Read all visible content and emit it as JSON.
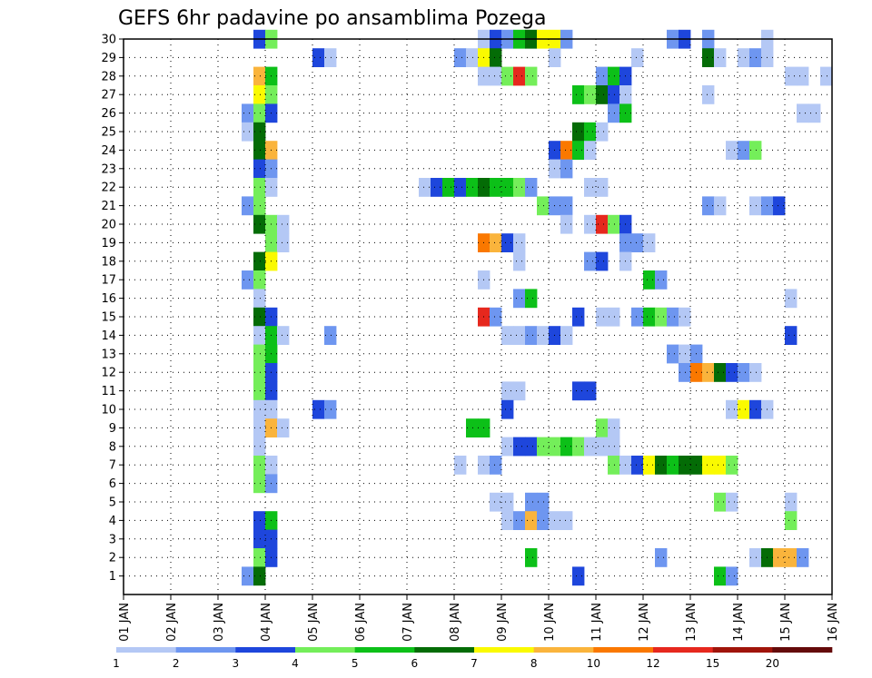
{
  "chart_data": {
    "type": "heatmap",
    "title": "GEFS 6hr padavine po ansamblima Pozega",
    "xlabel": "",
    "ylabel": "",
    "x_tick_labels": [
      "01 JAN",
      "02 JAN",
      "03 JAN",
      "04 JAN",
      "05 JAN",
      "06 JAN",
      "07 JAN",
      "08 JAN",
      "09 JAN",
      "10 JAN",
      "11 JAN",
      "12 JAN",
      "13 JAN",
      "14 JAN",
      "15 JAN",
      "16 JAN"
    ],
    "y_tick_labels": [
      "1",
      "2",
      "3",
      "4",
      "5",
      "6",
      "7",
      "8",
      "9",
      "10",
      "11",
      "12",
      "13",
      "14",
      "15",
      "16",
      "17",
      "18",
      "19",
      "20",
      "21",
      "22",
      "23",
      "24",
      "25",
      "26",
      "27",
      "28",
      "29",
      "30"
    ],
    "x_range_days": [
      1,
      16
    ],
    "y_range_members": [
      0,
      30
    ],
    "grid": true,
    "legend_position": "bottom",
    "color_scale": {
      "breaks": [
        "1",
        "2",
        "3",
        "4",
        "5",
        "6",
        "7",
        "8",
        "10",
        "12",
        "15",
        "20"
      ],
      "colors": [
        "#b4c8f5",
        "#6e96f0",
        "#1e46dc",
        "#74ee5a",
        "#0cc018",
        "#046c06",
        "#fafa00",
        "#fab43c",
        "#fa7800",
        "#e6281e",
        "#a0140a",
        "#640a0a"
      ]
    },
    "cells_note": "member index, day start of 6h step, color class 1-12",
    "cells": [
      [
        30,
        3.75,
        3
      ],
      [
        30,
        4.0,
        4
      ],
      [
        30,
        8.5,
        1
      ],
      [
        30,
        8.75,
        3
      ],
      [
        30,
        9.0,
        2
      ],
      [
        30,
        9.25,
        5
      ],
      [
        30,
        9.5,
        6
      ],
      [
        30,
        9.75,
        7
      ],
      [
        30,
        10.0,
        7
      ],
      [
        30,
        10.25,
        2
      ],
      [
        30,
        12.5,
        2
      ],
      [
        30,
        12.75,
        3
      ],
      [
        30,
        13.25,
        2
      ],
      [
        30,
        14.5,
        1
      ],
      [
        29,
        5.0,
        3
      ],
      [
        29,
        5.25,
        1
      ],
      [
        29,
        8.0,
        2
      ],
      [
        29,
        8.25,
        1
      ],
      [
        29,
        8.5,
        7
      ],
      [
        29,
        8.75,
        6
      ],
      [
        29,
        10.0,
        1
      ],
      [
        29,
        11.75,
        1
      ],
      [
        29,
        13.25,
        6
      ],
      [
        29,
        13.5,
        1
      ],
      [
        29,
        14.0,
        1
      ],
      [
        29,
        14.25,
        2
      ],
      [
        29,
        14.5,
        1
      ],
      [
        28,
        3.75,
        8
      ],
      [
        28,
        4.0,
        5
      ],
      [
        28,
        8.5,
        1
      ],
      [
        28,
        8.75,
        1
      ],
      [
        28,
        9.0,
        4
      ],
      [
        28,
        9.25,
        10
      ],
      [
        28,
        9.5,
        4
      ],
      [
        28,
        11.0,
        2
      ],
      [
        28,
        11.25,
        5
      ],
      [
        28,
        11.5,
        3
      ],
      [
        28,
        15.0,
        1
      ],
      [
        28,
        15.25,
        1
      ],
      [
        28,
        15.75,
        1
      ],
      [
        27,
        3.75,
        7
      ],
      [
        27,
        4.0,
        4
      ],
      [
        27,
        10.5,
        5
      ],
      [
        27,
        10.75,
        4
      ],
      [
        27,
        11.0,
        6
      ],
      [
        27,
        11.25,
        3
      ],
      [
        27,
        11.5,
        1
      ],
      [
        27,
        13.25,
        1
      ],
      [
        26,
        3.5,
        2
      ],
      [
        26,
        3.75,
        4
      ],
      [
        26,
        4.0,
        3
      ],
      [
        26,
        11.25,
        2
      ],
      [
        26,
        11.5,
        5
      ],
      [
        26,
        15.25,
        1
      ],
      [
        26,
        15.5,
        1
      ],
      [
        25,
        3.5,
        1
      ],
      [
        25,
        3.75,
        6
      ],
      [
        25,
        10.5,
        6
      ],
      [
        25,
        10.75,
        5
      ],
      [
        25,
        11.0,
        1
      ],
      [
        24,
        3.75,
        6
      ],
      [
        24,
        4.0,
        8
      ],
      [
        24,
        10.0,
        3
      ],
      [
        24,
        10.25,
        9
      ],
      [
        24,
        10.5,
        5
      ],
      [
        24,
        10.75,
        1
      ],
      [
        24,
        13.75,
        1
      ],
      [
        24,
        14.0,
        2
      ],
      [
        24,
        14.25,
        4
      ],
      [
        23,
        3.75,
        3
      ],
      [
        23,
        4.0,
        2
      ],
      [
        23,
        10.0,
        1
      ],
      [
        23,
        10.25,
        2
      ],
      [
        22,
        3.75,
        4
      ],
      [
        22,
        4.0,
        1
      ],
      [
        22,
        7.25,
        1
      ],
      [
        22,
        7.5,
        3
      ],
      [
        22,
        7.75,
        5
      ],
      [
        22,
        8.0,
        3
      ],
      [
        22,
        8.25,
        5
      ],
      [
        22,
        8.5,
        6
      ],
      [
        22,
        8.75,
        5
      ],
      [
        22,
        9.0,
        5
      ],
      [
        22,
        9.25,
        4
      ],
      [
        22,
        9.5,
        2
      ],
      [
        22,
        10.75,
        1
      ],
      [
        22,
        11.0,
        1
      ],
      [
        21,
        3.5,
        2
      ],
      [
        21,
        3.75,
        4
      ],
      [
        21,
        9.75,
        4
      ],
      [
        21,
        10.0,
        2
      ],
      [
        21,
        10.25,
        2
      ],
      [
        21,
        13.25,
        2
      ],
      [
        21,
        13.5,
        1
      ],
      [
        21,
        14.25,
        1
      ],
      [
        21,
        14.5,
        2
      ],
      [
        21,
        14.75,
        3
      ],
      [
        20,
        3.75,
        6
      ],
      [
        20,
        4.0,
        4
      ],
      [
        20,
        4.25,
        1
      ],
      [
        20,
        10.25,
        1
      ],
      [
        20,
        10.75,
        1
      ],
      [
        20,
        11.0,
        10
      ],
      [
        20,
        11.25,
        4
      ],
      [
        20,
        11.5,
        3
      ],
      [
        19,
        4.0,
        4
      ],
      [
        19,
        4.25,
        1
      ],
      [
        19,
        8.5,
        9
      ],
      [
        19,
        8.75,
        8
      ],
      [
        19,
        9.0,
        3
      ],
      [
        19,
        9.25,
        1
      ],
      [
        19,
        11.5,
        2
      ],
      [
        19,
        11.75,
        2
      ],
      [
        19,
        12.0,
        1
      ],
      [
        18,
        3.75,
        6
      ],
      [
        18,
        4.0,
        7
      ],
      [
        18,
        9.25,
        1
      ],
      [
        18,
        10.75,
        2
      ],
      [
        18,
        11.0,
        3
      ],
      [
        18,
        11.5,
        1
      ],
      [
        17,
        3.5,
        2
      ],
      [
        17,
        3.75,
        4
      ],
      [
        17,
        8.5,
        1
      ],
      [
        17,
        12.0,
        5
      ],
      [
        17,
        12.25,
        2
      ],
      [
        16,
        3.75,
        1
      ],
      [
        16,
        9.25,
        2
      ],
      [
        16,
        9.5,
        5
      ],
      [
        16,
        15.0,
        1
      ],
      [
        15,
        3.75,
        6
      ],
      [
        15,
        4.0,
        3
      ],
      [
        15,
        8.5,
        10
      ],
      [
        15,
        8.75,
        2
      ],
      [
        15,
        10.5,
        3
      ],
      [
        15,
        11.0,
        1
      ],
      [
        15,
        11.25,
        1
      ],
      [
        15,
        11.75,
        2
      ],
      [
        15,
        12.0,
        5
      ],
      [
        15,
        12.25,
        4
      ],
      [
        15,
        12.5,
        2
      ],
      [
        15,
        12.75,
        1
      ],
      [
        14,
        3.75,
        1
      ],
      [
        14,
        4.0,
        5
      ],
      [
        14,
        4.25,
        1
      ],
      [
        14,
        5.25,
        2
      ],
      [
        14,
        9.0,
        1
      ],
      [
        14,
        9.25,
        1
      ],
      [
        14,
        9.5,
        2
      ],
      [
        14,
        9.75,
        1
      ],
      [
        14,
        10.0,
        3
      ],
      [
        14,
        10.25,
        1
      ],
      [
        14,
        15.0,
        3
      ],
      [
        13,
        3.75,
        4
      ],
      [
        13,
        4.0,
        5
      ],
      [
        13,
        12.5,
        2
      ],
      [
        13,
        12.75,
        1
      ],
      [
        13,
        13.0,
        2
      ],
      [
        12,
        3.75,
        4
      ],
      [
        12,
        4.0,
        3
      ],
      [
        12,
        12.75,
        2
      ],
      [
        12,
        13.0,
        9
      ],
      [
        12,
        13.25,
        8
      ],
      [
        12,
        13.5,
        6
      ],
      [
        12,
        13.75,
        3
      ],
      [
        12,
        14.0,
        2
      ],
      [
        12,
        14.25,
        1
      ],
      [
        11,
        3.75,
        4
      ],
      [
        11,
        4.0,
        3
      ],
      [
        11,
        9.0,
        1
      ],
      [
        11,
        9.25,
        1
      ],
      [
        11,
        10.5,
        3
      ],
      [
        11,
        10.75,
        3
      ],
      [
        10,
        3.75,
        1
      ],
      [
        10,
        4.0,
        1
      ],
      [
        10,
        5.0,
        3
      ],
      [
        10,
        5.25,
        2
      ],
      [
        10,
        9.0,
        3
      ],
      [
        10,
        13.75,
        1
      ],
      [
        10,
        14.0,
        7
      ],
      [
        10,
        14.25,
        3
      ],
      [
        10,
        14.5,
        1
      ],
      [
        9,
        3.75,
        1
      ],
      [
        9,
        4.0,
        8
      ],
      [
        9,
        4.25,
        1
      ],
      [
        9,
        8.25,
        5
      ],
      [
        9,
        8.5,
        5
      ],
      [
        9,
        11.0,
        4
      ],
      [
        9,
        11.25,
        1
      ],
      [
        8,
        3.75,
        1
      ],
      [
        8,
        9.0,
        1
      ],
      [
        8,
        9.25,
        3
      ],
      [
        8,
        9.5,
        3
      ],
      [
        8,
        9.75,
        4
      ],
      [
        8,
        10.0,
        4
      ],
      [
        8,
        10.25,
        5
      ],
      [
        8,
        10.5,
        4
      ],
      [
        8,
        10.75,
        1
      ],
      [
        8,
        11.0,
        1
      ],
      [
        8,
        11.25,
        1
      ],
      [
        7,
        3.75,
        4
      ],
      [
        7,
        4.0,
        1
      ],
      [
        7,
        8.0,
        1
      ],
      [
        7,
        8.5,
        1
      ],
      [
        7,
        8.75,
        2
      ],
      [
        7,
        11.25,
        4
      ],
      [
        7,
        11.5,
        1
      ],
      [
        7,
        11.75,
        3
      ],
      [
        7,
        12.0,
        7
      ],
      [
        7,
        12.25,
        6
      ],
      [
        7,
        12.5,
        5
      ],
      [
        7,
        12.75,
        6
      ],
      [
        7,
        13.0,
        6
      ],
      [
        7,
        13.25,
        7
      ],
      [
        7,
        13.5,
        7
      ],
      [
        7,
        13.75,
        4
      ],
      [
        6,
        3.75,
        4
      ],
      [
        6,
        4.0,
        2
      ],
      [
        5,
        8.75,
        1
      ],
      [
        5,
        9.0,
        1
      ],
      [
        5,
        9.5,
        2
      ],
      [
        5,
        9.75,
        2
      ],
      [
        5,
        13.5,
        4
      ],
      [
        5,
        13.75,
        1
      ],
      [
        5,
        15.0,
        1
      ],
      [
        4,
        3.75,
        3
      ],
      [
        4,
        4.0,
        5
      ],
      [
        4,
        9.0,
        1
      ],
      [
        4,
        9.25,
        2
      ],
      [
        4,
        9.5,
        8
      ],
      [
        4,
        9.75,
        2
      ],
      [
        4,
        10.0,
        1
      ],
      [
        4,
        10.25,
        1
      ],
      [
        4,
        15.0,
        4
      ],
      [
        3,
        3.75,
        3
      ],
      [
        3,
        4.0,
        3
      ],
      [
        2,
        3.75,
        4
      ],
      [
        2,
        4.0,
        3
      ],
      [
        2,
        9.5,
        5
      ],
      [
        2,
        12.25,
        2
      ],
      [
        2,
        14.25,
        1
      ],
      [
        2,
        14.5,
        6
      ],
      [
        2,
        14.75,
        8
      ],
      [
        2,
        15.0,
        8
      ],
      [
        2,
        15.25,
        2
      ],
      [
        1,
        3.5,
        2
      ],
      [
        1,
        3.75,
        6
      ],
      [
        1,
        10.5,
        3
      ],
      [
        1,
        13.5,
        5
      ],
      [
        1,
        13.75,
        2
      ]
    ]
  }
}
